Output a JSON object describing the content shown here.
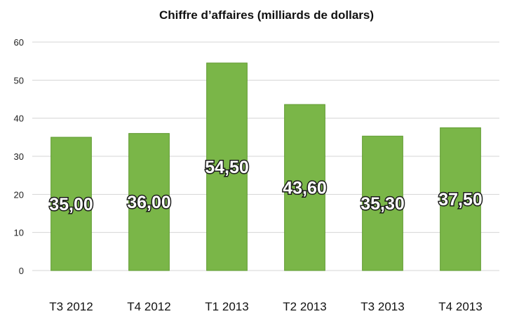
{
  "chart_data": {
    "type": "bar",
    "title": "Chiffre d’affaires (milliards de dollars)",
    "categories": [
      "T3 2012",
      "T4 2012",
      "T1 2013",
      "T2 2013",
      "T3 2013",
      "T4 2013"
    ],
    "values": [
      35.0,
      36.0,
      54.5,
      43.6,
      35.3,
      37.5
    ],
    "data_labels": [
      "35,00",
      "36,00",
      "54,50",
      "43,60",
      "35,30",
      "37,50"
    ],
    "yticks": [
      "0",
      "10",
      "20",
      "30",
      "40",
      "50",
      "60"
    ],
    "ylim": [
      0,
      60
    ],
    "grid": true,
    "legend": "none",
    "bar_color": "#7ab648",
    "bar_edge_color": "#5f9a30"
  }
}
